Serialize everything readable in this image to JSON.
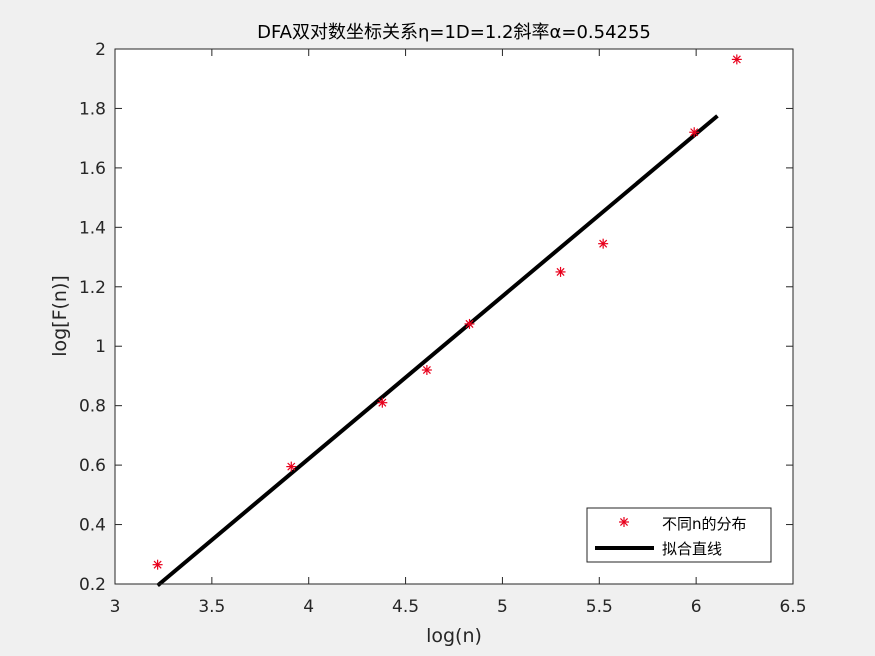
{
  "chart_data": {
    "type": "scatter",
    "title": "DFA双对数坐标关系η=1D=1.2斜率α=0.54255",
    "xlabel": "log(n)",
    "ylabel": "log[F(n)]",
    "xlim": [
      3,
      6.5
    ],
    "ylim": [
      0.2,
      2
    ],
    "x_ticks": [
      "3",
      "3.5",
      "4",
      "4.5",
      "5",
      "5.5",
      "6",
      "6.5"
    ],
    "y_ticks": [
      "0.2",
      "0.4",
      "0.6",
      "0.8",
      "1",
      "1.2",
      "1.4",
      "1.6",
      "1.8",
      "2"
    ],
    "grid": false,
    "legend_position": "bottom-right",
    "series": [
      {
        "name": "不同n的分布",
        "kind": "marker",
        "marker": "asterisk",
        "color": "#e8001c",
        "x": [
          3.22,
          3.91,
          4.38,
          4.61,
          4.83,
          5.3,
          5.52,
          5.99,
          6.21
        ],
        "y": [
          0.265,
          0.595,
          0.81,
          0.92,
          1.075,
          1.25,
          1.345,
          1.72,
          1.965
        ]
      },
      {
        "name": "拟合直线",
        "kind": "line",
        "color": "#000000",
        "x": [
          3.22,
          6.11
        ],
        "y": [
          0.195,
          1.775
        ]
      }
    ]
  }
}
